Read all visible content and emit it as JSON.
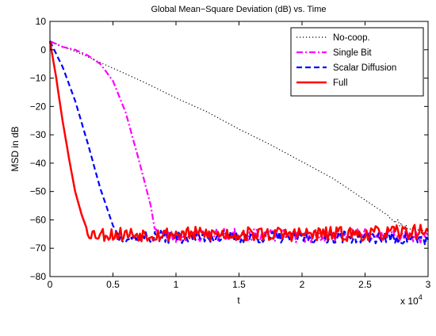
{
  "chart_data": {
    "type": "line",
    "title": "Global Mean−Square Deviation (dB) vs. Time",
    "xlabel": "t",
    "ylabel": "MSD in dB",
    "x_multiplier_label": "x 10",
    "x_multiplier_exponent": "4",
    "xlim": [
      0,
      3
    ],
    "ylim": [
      -80,
      10
    ],
    "xticks": [
      0,
      0.5,
      1,
      1.5,
      2,
      2.5,
      3
    ],
    "xtick_labels": [
      "0",
      "0.5",
      "1",
      "1.5",
      "2",
      "2.5",
      "3"
    ],
    "yticks": [
      10,
      0,
      -10,
      -20,
      -30,
      -40,
      -50,
      -60,
      -70,
      -80
    ],
    "ytick_labels": [
      "10",
      "0",
      "−10",
      "−20",
      "−30",
      "−40",
      "−50",
      "−60",
      "−70",
      "−80"
    ],
    "grid": false,
    "legend_position": "top-right",
    "series": [
      {
        "name": "No-coop.",
        "color": "#000000",
        "style": "dotted",
        "points": [
          [
            0,
            3
          ],
          [
            0.25,
            -1.5
          ],
          [
            0.5,
            -6.5
          ],
          [
            0.75,
            -11.5
          ],
          [
            1.0,
            -17
          ],
          [
            1.25,
            -22
          ],
          [
            1.5,
            -28
          ],
          [
            1.75,
            -33.5
          ],
          [
            2.0,
            -39.5
          ],
          [
            2.25,
            -45.5
          ],
          [
            2.5,
            -53
          ],
          [
            2.7,
            -59
          ],
          [
            2.8,
            -62
          ],
          [
            3.0,
            -65
          ]
        ]
      },
      {
        "name": "Single Bit",
        "color": "#ff00ff",
        "style": "dashdot",
        "points": [
          [
            0,
            3
          ],
          [
            0.1,
            1
          ],
          [
            0.2,
            0
          ],
          [
            0.3,
            -2
          ],
          [
            0.4,
            -5
          ],
          [
            0.5,
            -11
          ],
          [
            0.6,
            -22
          ],
          [
            0.7,
            -38
          ],
          [
            0.8,
            -55
          ],
          [
            0.83,
            -63
          ],
          [
            0.9,
            -65
          ],
          [
            1.0,
            -66
          ],
          [
            1.5,
            -65
          ],
          [
            2.0,
            -66
          ],
          [
            2.5,
            -65
          ],
          [
            3.0,
            -66
          ]
        ]
      },
      {
        "name": "Scalar Diffusion",
        "color": "#0000ff",
        "style": "dashed",
        "points": [
          [
            0,
            3
          ],
          [
            0.1,
            -6
          ],
          [
            0.2,
            -18
          ],
          [
            0.3,
            -33
          ],
          [
            0.4,
            -49
          ],
          [
            0.5,
            -62
          ],
          [
            0.55,
            -66
          ],
          [
            0.7,
            -66
          ],
          [
            1.0,
            -66
          ],
          [
            1.5,
            -66
          ],
          [
            2.0,
            -66
          ],
          [
            2.5,
            -66
          ],
          [
            3.0,
            -67
          ]
        ]
      },
      {
        "name": "Full",
        "color": "#ff0000",
        "style": "solid",
        "points": [
          [
            0,
            3
          ],
          [
            0.05,
            -10
          ],
          [
            0.1,
            -25
          ],
          [
            0.15,
            -38
          ],
          [
            0.2,
            -50
          ],
          [
            0.25,
            -58
          ],
          [
            0.3,
            -64
          ],
          [
            0.35,
            -65
          ],
          [
            0.5,
            -65
          ],
          [
            0.75,
            -65
          ],
          [
            1.0,
            -65
          ],
          [
            1.5,
            -65
          ],
          [
            2.0,
            -65
          ],
          [
            2.5,
            -65
          ],
          [
            3.0,
            -64
          ]
        ]
      }
    ]
  }
}
